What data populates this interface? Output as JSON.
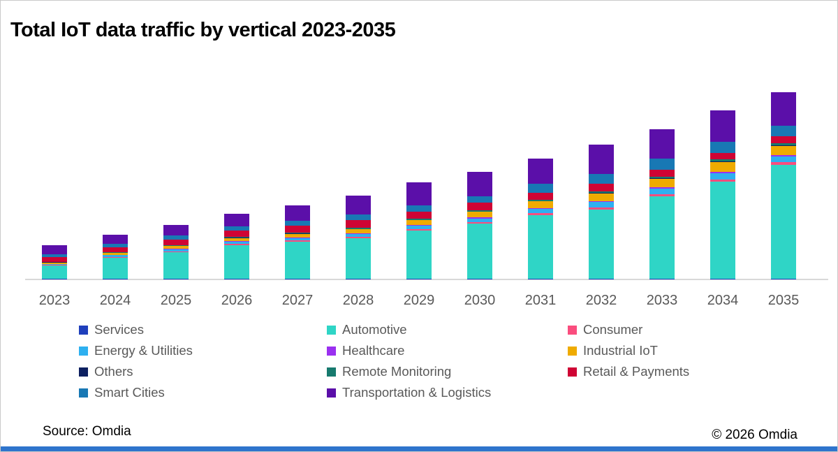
{
  "title": "Total IoT data traffic by vertical 2023-2035",
  "source": "Source: Omdia",
  "copyright": "© 2026 Omdia",
  "colors": {
    "axis_line": "#d8d8d8",
    "tick_label_text": "#595959",
    "legend_text": "#595959",
    "bottom_accent_bar": "#2e74cc"
  },
  "chart_data": {
    "type": "bar",
    "stacked": true,
    "title": "Total IoT data traffic by vertical 2023-2035",
    "xlabel": "",
    "ylabel": "",
    "units": "relative height (no y-axis shown in image)",
    "grid": false,
    "legend_position": "bottom, 3 columns, row-major order",
    "categories": [
      "2023",
      "2024",
      "2025",
      "2026",
      "2027",
      "2028",
      "2029",
      "2030",
      "2031",
      "2032",
      "2033",
      "2034",
      "2035"
    ],
    "series": [
      {
        "name": "Services",
        "color": "#1f3fbc",
        "values": [
          0.5,
          0.5,
          0.5,
          0.5,
          0.5,
          0.5,
          0.5,
          0.5,
          0.5,
          0.5,
          0.5,
          0.5,
          0.5
        ]
      },
      {
        "name": "Automotive",
        "color": "#2fd5c6",
        "values": [
          19,
          30,
          38,
          48,
          53,
          58,
          69,
          79,
          91,
          99,
          118,
          139,
          163
        ]
      },
      {
        "name": "Consumer",
        "color": "#fa4d7e",
        "values": [
          0.5,
          1,
          1,
          1.5,
          1.5,
          1.5,
          2,
          2,
          2.5,
          3,
          3,
          3,
          3.5
        ]
      },
      {
        "name": "Energy & Utilities",
        "color": "#2eb0f0",
        "values": [
          1,
          2.5,
          2.5,
          3,
          3.5,
          4,
          4.5,
          5,
          6,
          7.5,
          8,
          9,
          8.5
        ]
      },
      {
        "name": "Healthcare",
        "color": "#9a30f0",
        "values": [
          0.5,
          0.5,
          1,
          1,
          1,
          1,
          1,
          1.5,
          1.5,
          1.5,
          2,
          2,
          2
        ]
      },
      {
        "name": "Industrial IoT",
        "color": "#efab00",
        "values": [
          2,
          2.5,
          4,
          4.5,
          5,
          6,
          7,
          8,
          9.5,
          11,
          12,
          14,
          13
        ]
      },
      {
        "name": "Others",
        "color": "#0d2060",
        "values": [
          0.5,
          0.5,
          0.5,
          0.5,
          0.5,
          0.5,
          0.5,
          0.5,
          0.5,
          1,
          1,
          1,
          1
        ]
      },
      {
        "name": "Remote Monitoring",
        "color": "#177a6e",
        "values": [
          0.5,
          1,
          1,
          1,
          1.5,
          1.5,
          1.5,
          1.5,
          2,
          2,
          2,
          2.5,
          2.5
        ]
      },
      {
        "name": "Retail & Payments",
        "color": "#cf0434",
        "values": [
          6.5,
          7,
          8,
          9,
          10,
          11,
          10.5,
          11,
          10,
          10.5,
          9.5,
          9,
          10
        ]
      },
      {
        "name": "Smart Cities",
        "color": "#1878b4",
        "values": [
          4.5,
          5,
          6,
          6,
          7,
          8,
          8.5,
          9.5,
          13,
          14,
          16,
          16,
          15
        ]
      },
      {
        "name": "Transportation & Logistics",
        "color": "#5b0fa9",
        "values": [
          12.5,
          13,
          15,
          18,
          22,
          27,
          33,
          35,
          36,
          42,
          42,
          45,
          48
        ]
      }
    ]
  }
}
